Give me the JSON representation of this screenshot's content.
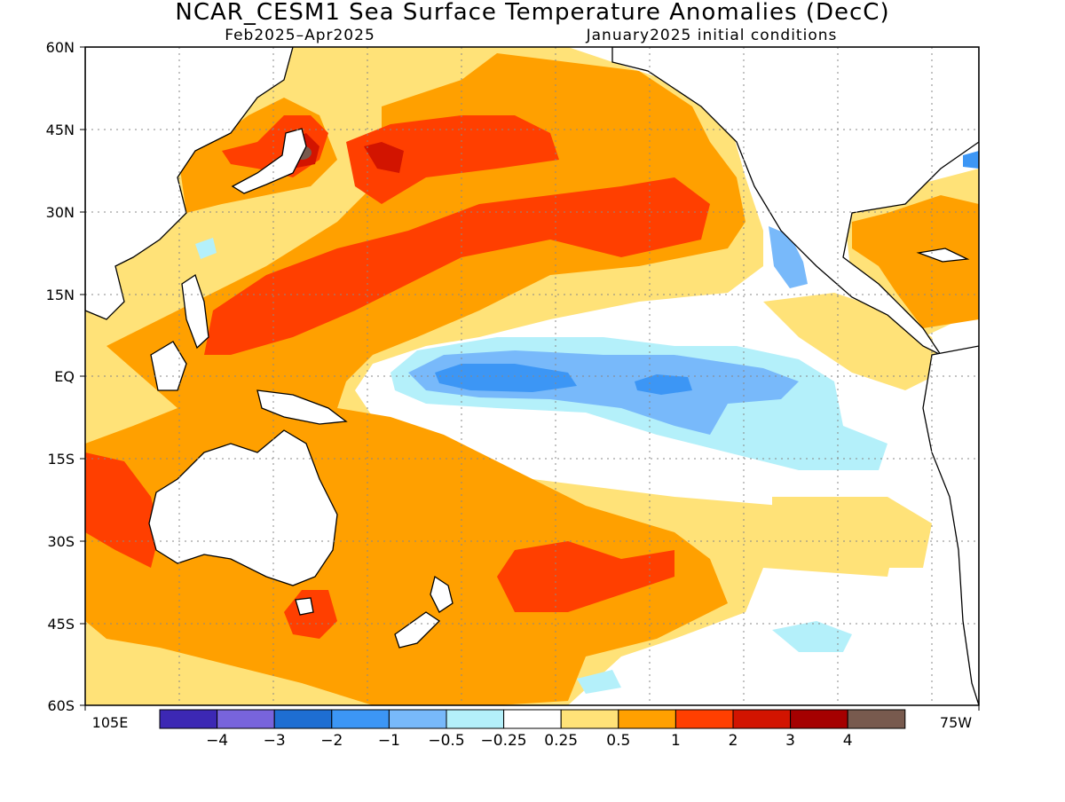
{
  "header": {
    "title": "NCAR_CESM1 Sea Surface Temperature Anomalies (DecC)",
    "period": "Feb2025–Apr2025",
    "initial_conditions": "January2025 initial conditions"
  },
  "map": {
    "lat_labels": [
      "60N",
      "45N",
      "30N",
      "15N",
      "EQ",
      "15S",
      "30S",
      "45S",
      "60S"
    ],
    "lon_left": "105E",
    "lon_right": "75W",
    "anomaly_colors": {
      "strong_warm": "#ff3f00",
      "warm": "#ffa000",
      "weak_warm": "#ffe278",
      "weak_cool": "#b4f0fa",
      "cool": "#78b9fa",
      "strong_cool": "#3c96f5",
      "extreme_warm": "#d21400",
      "peak_warm": "#785a4e",
      "land": "#ffffff"
    }
  },
  "colorbar": {
    "colors": [
      "#3c28b4",
      "#7864dc",
      "#1e6ed2",
      "#3c96f5",
      "#78b9fa",
      "#b4f0fa",
      "#ffffff",
      "#ffe278",
      "#ffa000",
      "#ff3f00",
      "#d21400",
      "#a50000",
      "#785a4e"
    ],
    "labels": [
      "−4",
      "−3",
      "−2",
      "−1",
      "−0.5",
      "−0.25",
      "0.25",
      "0.5",
      "1",
      "2",
      "3",
      "4"
    ]
  }
}
